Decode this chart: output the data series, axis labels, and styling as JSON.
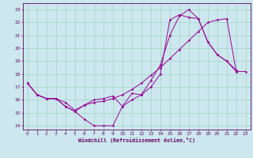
{
  "bg_color": "#cce8ee",
  "grid_color": "#99ccbb",
  "line_color": "#990099",
  "xlabel": "Windchill (Refroidissement éolien,°C)",
  "xticks": [
    0,
    1,
    2,
    3,
    4,
    5,
    6,
    7,
    8,
    9,
    10,
    11,
    12,
    13,
    14,
    15,
    16,
    17,
    18,
    19,
    20,
    21,
    22,
    23
  ],
  "yticks": [
    14,
    15,
    16,
    17,
    18,
    19,
    20,
    21,
    22,
    23
  ],
  "xlim": [
    -0.5,
    23.5
  ],
  "ylim": [
    13.7,
    23.5
  ],
  "lines": [
    {
      "x": [
        0,
        1,
        2,
        3,
        4,
        5,
        6,
        7,
        8,
        9,
        10,
        11,
        12,
        13,
        14,
        15,
        16,
        17,
        18,
        19,
        20,
        21,
        22
      ],
      "y": [
        17.3,
        16.4,
        16.1,
        16.1,
        15.5,
        15.1,
        14.5,
        14.0,
        14.0,
        14.0,
        15.5,
        16.5,
        16.4,
        17.5,
        18.7,
        21.0,
        22.5,
        23.0,
        22.3,
        20.5,
        19.5,
        19.0,
        18.3
      ]
    },
    {
      "x": [
        0,
        1,
        2,
        3,
        4,
        5,
        6,
        7,
        8,
        9,
        10,
        11,
        12,
        13,
        14,
        15,
        16,
        17,
        18,
        19,
        20,
        21,
        22,
        23
      ],
      "y": [
        17.3,
        16.4,
        16.1,
        16.1,
        15.8,
        15.2,
        15.6,
        15.8,
        15.9,
        16.1,
        16.4,
        16.8,
        17.3,
        17.9,
        18.5,
        19.2,
        19.9,
        20.6,
        21.3,
        22.0,
        22.2,
        22.3,
        18.2,
        18.2
      ]
    },
    {
      "x": [
        0,
        1,
        2,
        3,
        4,
        5,
        6,
        7,
        8,
        9,
        10,
        11,
        12,
        13,
        14,
        15,
        16,
        17,
        18,
        19,
        20,
        21,
        22
      ],
      "y": [
        17.3,
        16.4,
        16.1,
        16.1,
        15.5,
        15.1,
        15.6,
        16.0,
        16.1,
        16.3,
        15.5,
        16.0,
        16.4,
        17.0,
        18.0,
        22.2,
        22.6,
        22.4,
        22.3,
        20.5,
        19.5,
        19.0,
        18.2
      ]
    }
  ],
  "tick_color": "#660066",
  "tick_fontsize": 4.2,
  "xlabel_fontsize": 4.8,
  "spine_color": "#660066"
}
